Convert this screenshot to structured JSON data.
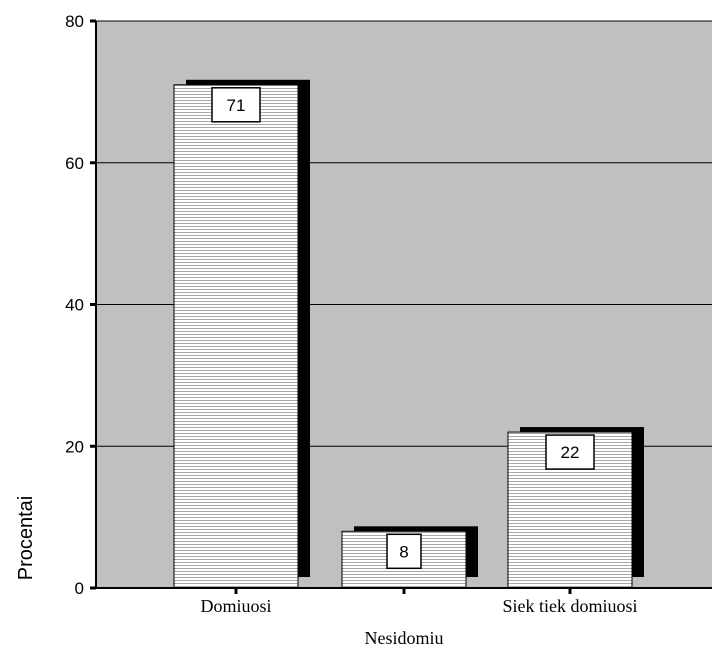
{
  "chart_data": {
    "type": "bar",
    "categories": [
      "Domiuosi",
      "",
      "Siek tiek domiuosi"
    ],
    "values": [
      71,
      8,
      22
    ],
    "data_labels": [
      "71",
      "8",
      "22"
    ],
    "xlabel": "Nesidomiu",
    "ylabel": "Procentai",
    "ylim": [
      0,
      80
    ],
    "yticks": [
      "0",
      "20",
      "40",
      "60",
      "80"
    ],
    "grid": true,
    "plot_background": "#c0c0c0",
    "bar_fill": "#ffffff",
    "bar_hatch": "#a0a0a0",
    "bar_shadow": "#000000"
  }
}
